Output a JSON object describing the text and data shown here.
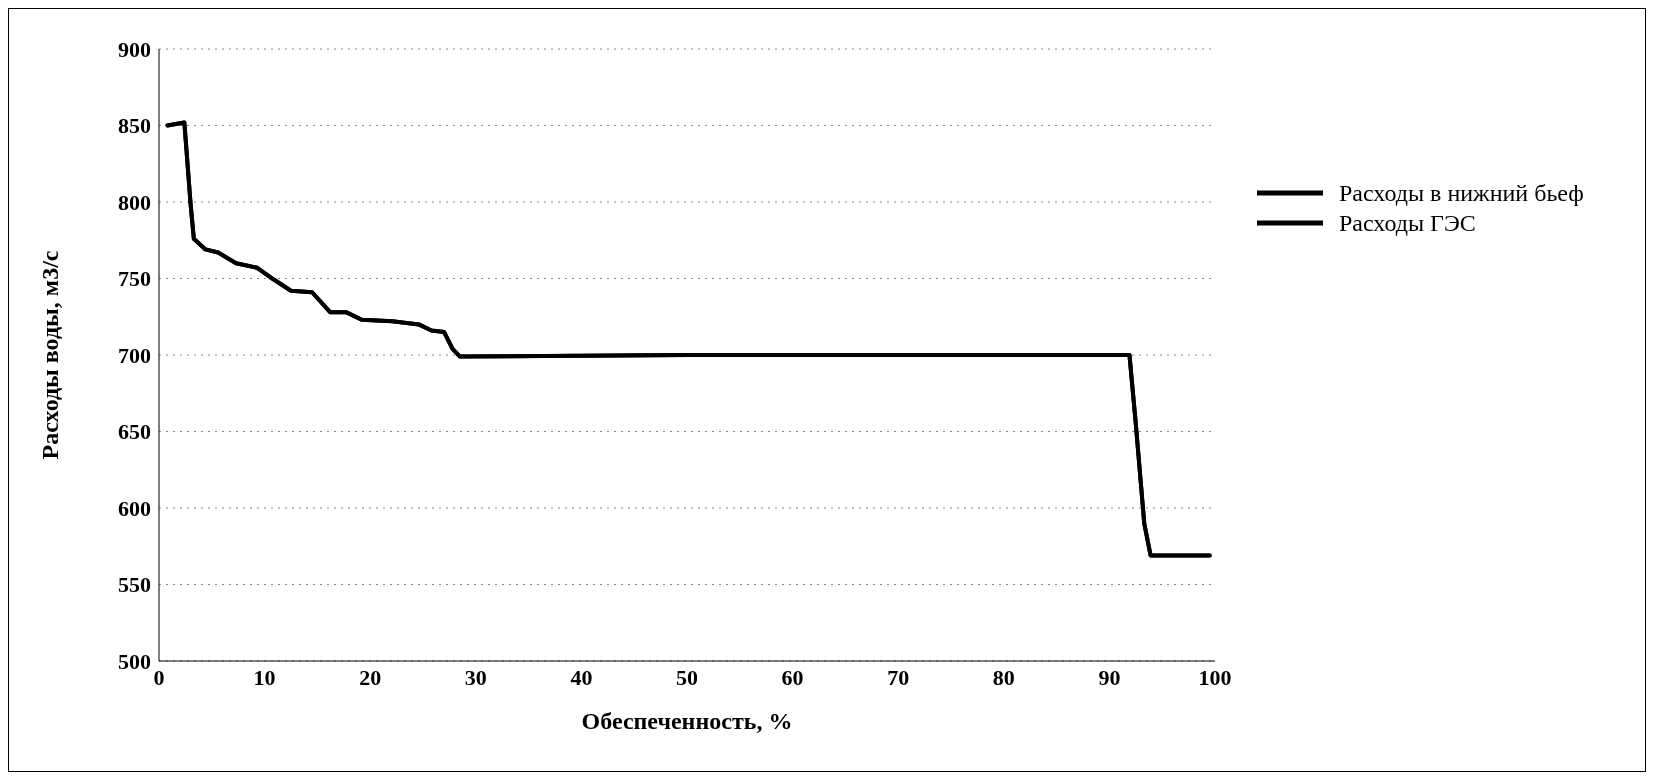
{
  "chart_data": {
    "type": "line",
    "xlabel": "Обеспеченность, %",
    "ylabel": "Расходы воды, м3/с",
    "x": [
      0.8,
      2.4,
      3.0,
      3.3,
      4.4,
      5.6,
      7.3,
      9.3,
      10.5,
      12.5,
      14.5,
      16.2,
      17.7,
      19.2,
      22.1,
      24.6,
      25.8,
      27.0,
      27.8,
      28.5,
      50,
      70,
      91.9,
      92.5,
      93.3,
      93.9,
      99.5
    ],
    "series": [
      {
        "name": "Расходы в нижний бьеф",
        "color": "#000000",
        "values": [
          850,
          852,
          798,
          776,
          769,
          767,
          760,
          757,
          751,
          742,
          741,
          728,
          728,
          723,
          722,
          720,
          716,
          715,
          704,
          699,
          700,
          700,
          700,
          655,
          590,
          569,
          569
        ]
      },
      {
        "name": "Расходы ГЭС",
        "color": "#000000",
        "values": [
          850,
          852,
          798,
          776,
          769,
          767,
          760,
          757,
          751,
          742,
          741,
          728,
          728,
          723,
          722,
          720,
          716,
          715,
          704,
          699,
          700,
          700,
          700,
          655,
          590,
          569,
          569
        ]
      }
    ],
    "xlim": [
      0,
      100
    ],
    "xticks": [
      0,
      10,
      20,
      30,
      40,
      50,
      60,
      70,
      80,
      90,
      100
    ],
    "ylim": [
      500,
      900
    ],
    "yticks": [
      500,
      550,
      600,
      650,
      700,
      750,
      800,
      850,
      900
    ],
    "grid": "y",
    "legend": "top right",
    "marker": "none",
    "line_style": "solid"
  }
}
